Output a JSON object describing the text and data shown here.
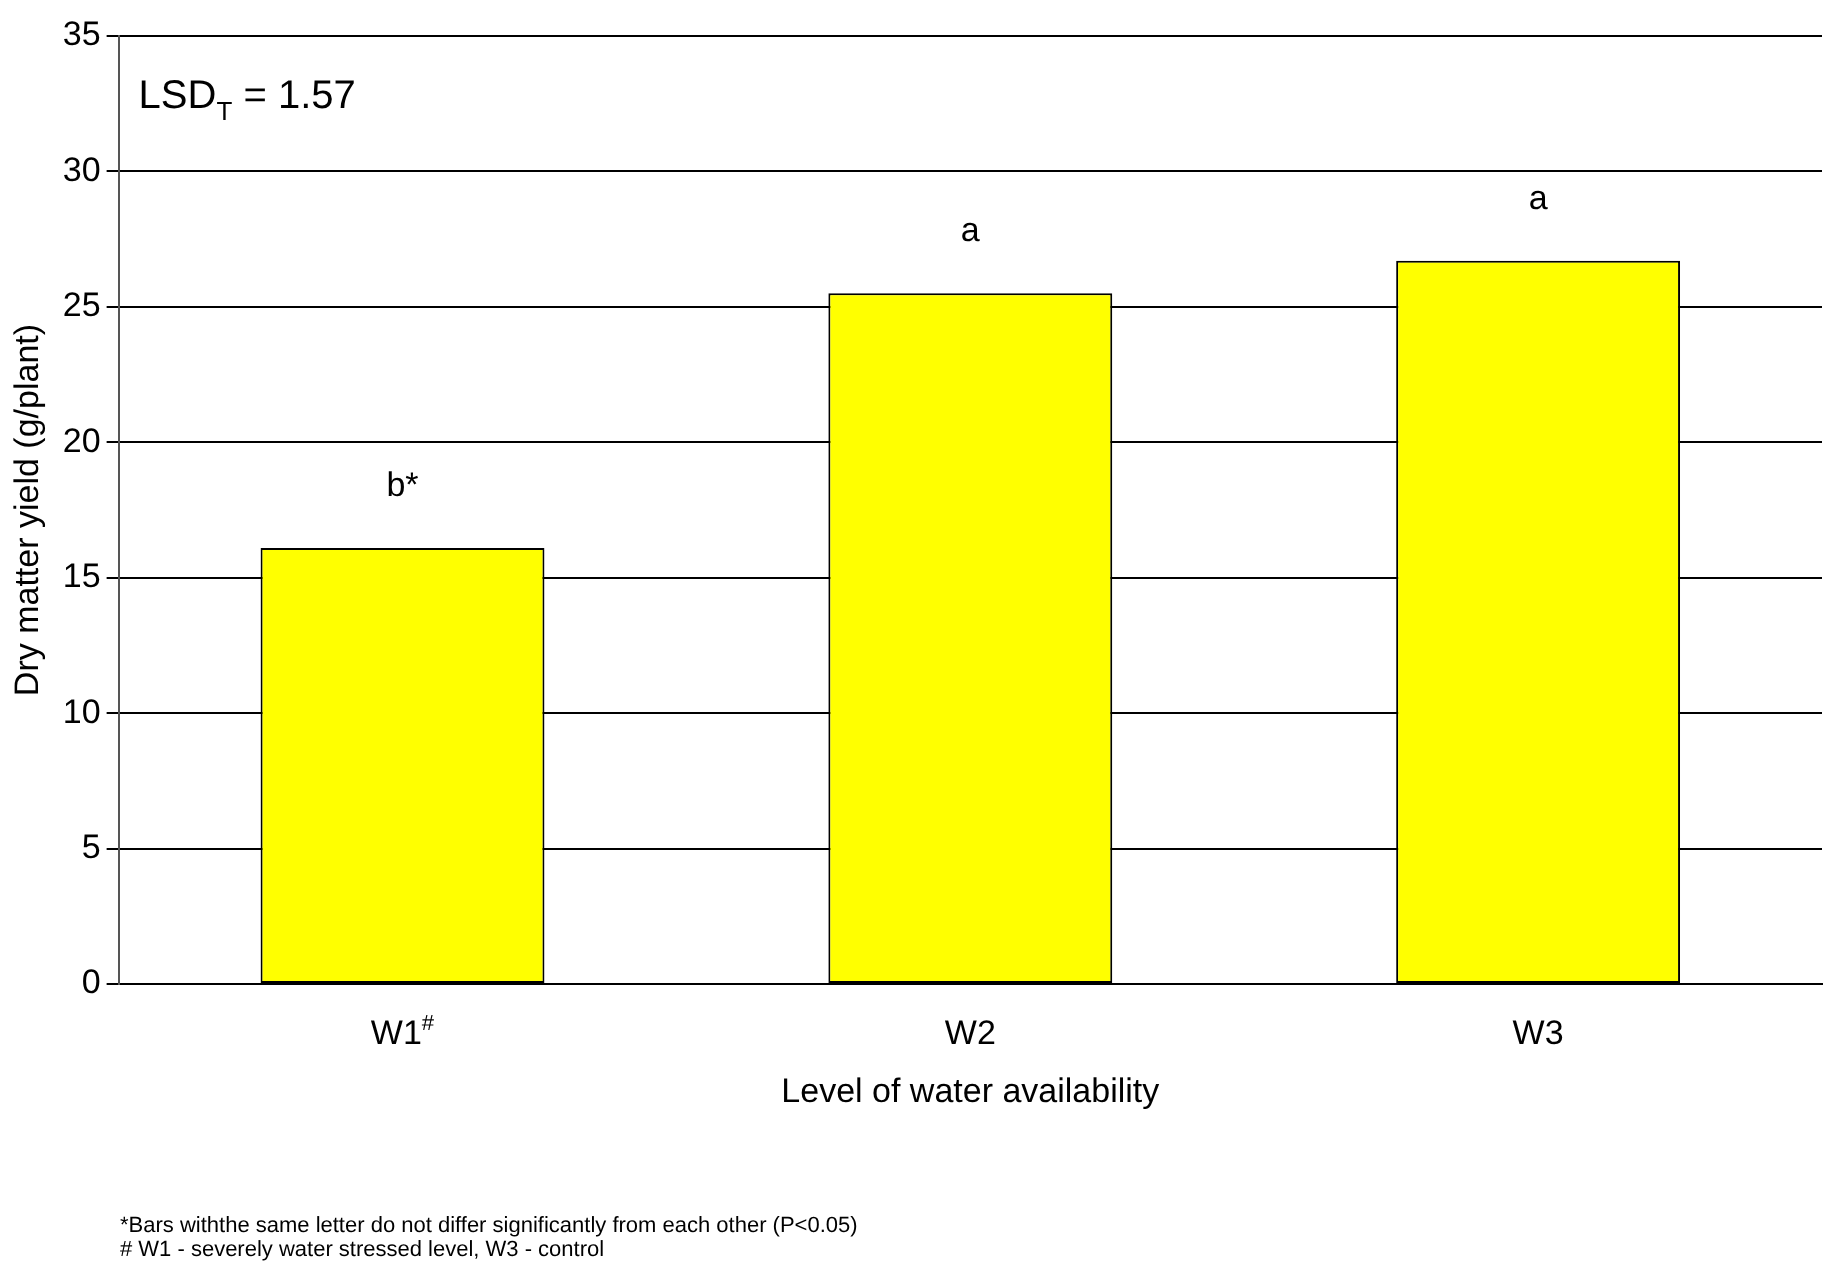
{
  "chart_data": {
    "type": "bar",
    "xlabel": "Level of water availability",
    "ylabel": "Dry matter yield (g/plant)",
    "categories": [
      "W1$^{#}$",
      "W2",
      "W3"
    ],
    "values": [
      16.1,
      25.5,
      26.7
    ],
    "color": "#ffff00",
    "ylim": [
      0,
      35
    ],
    "yticks": [
      0,
      5,
      10,
      15,
      20,
      25,
      30,
      35
    ],
    "grid": "y",
    "legend": false,
    "annotations": [
      "LSD$_{T}$ = 1.57",
      {
        "text": "b*",
        "x": "W1$^{#}$",
        "y": 16.1
      },
      {
        "text": "a",
        "x": "W2",
        "y": 25.5
      },
      {
        "text": "a",
        "x": "W3",
        "y": 26.7
      },
      "*Bars withthe same letter do not differ significantly from each other (P<0.05)",
      "# W1 - severely water stressed level, W3 - control"
    ]
  }
}
